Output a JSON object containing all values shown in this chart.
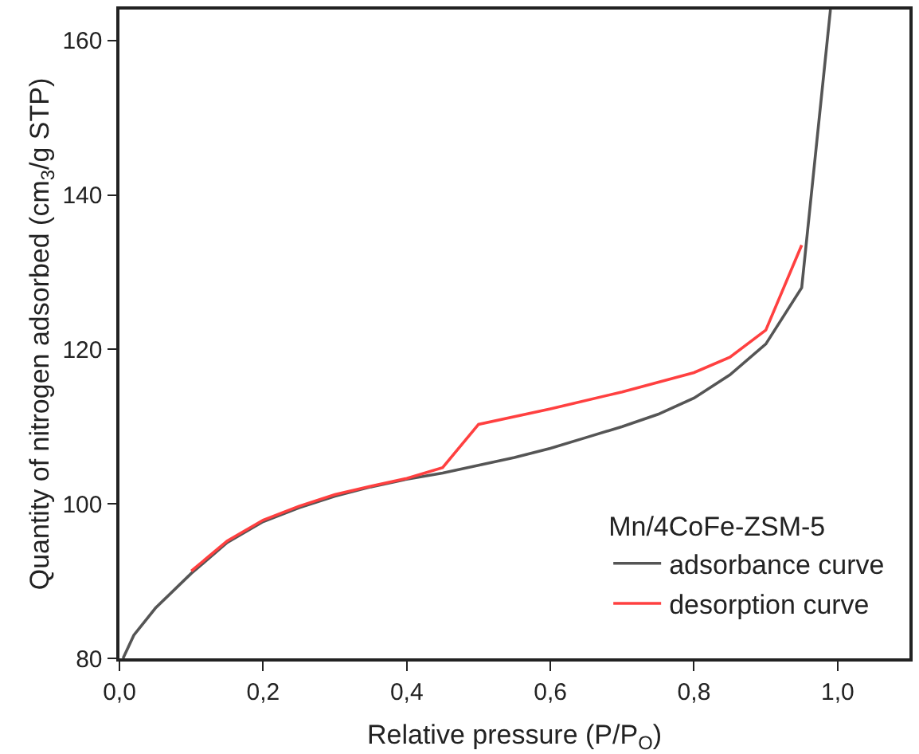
{
  "chart_data": {
    "type": "line",
    "xlabel": "Relative pressure (P/P$_{O}$)",
    "ylabel": "Quantity of nitrogen adsorbed (cm$_{3}$/g STP)",
    "legend_title": "Mn/4CoFe-ZSM-5",
    "xlim": [
      0,
      1.1
    ],
    "ylim": [
      80,
      164
    ],
    "xticks": [
      {
        "value": 0,
        "label": "0,0"
      },
      {
        "value": 0.2,
        "label": "0,2"
      },
      {
        "value": 0.4,
        "label": "0,4"
      },
      {
        "value": 0.6,
        "label": "0,6"
      },
      {
        "value": 0.8,
        "label": "0,8"
      },
      {
        "value": 1,
        "label": "1,0"
      }
    ],
    "yticks": [
      80,
      100,
      120,
      140,
      160
    ],
    "grid": false,
    "legend": "bottom right",
    "marker": "none",
    "line_style": "solid",
    "series": [
      {
        "name": "adsorbance curve",
        "color": "#555555",
        "x": [
          0.005,
          0.02,
          0.05,
          0.1,
          0.15,
          0.2,
          0.25,
          0.3,
          0.35,
          0.4,
          0.45,
          0.5,
          0.55,
          0.6,
          0.65,
          0.7,
          0.75,
          0.8,
          0.85,
          0.9,
          0.95,
          0.99
        ],
        "values": [
          80,
          83,
          86.5,
          91,
          95,
          97.7,
          99.5,
          101,
          102.2,
          103.2,
          104,
          105,
          106,
          107.2,
          108.6,
          110,
          111.6,
          113.7,
          116.7,
          120.7,
          128,
          164
        ]
      },
      {
        "name": "desorption curve",
        "color": "#ff4040",
        "x": [
          0.1,
          0.15,
          0.2,
          0.25,
          0.3,
          0.35,
          0.4,
          0.45,
          0.5,
          0.6,
          0.7,
          0.8,
          0.85,
          0.9,
          0.95
        ],
        "values": [
          91.3,
          95.2,
          97.9,
          99.7,
          101.2,
          102.3,
          103.3,
          104.7,
          110.3,
          112.3,
          114.5,
          117,
          119,
          122.5,
          133.5
        ]
      }
    ]
  }
}
